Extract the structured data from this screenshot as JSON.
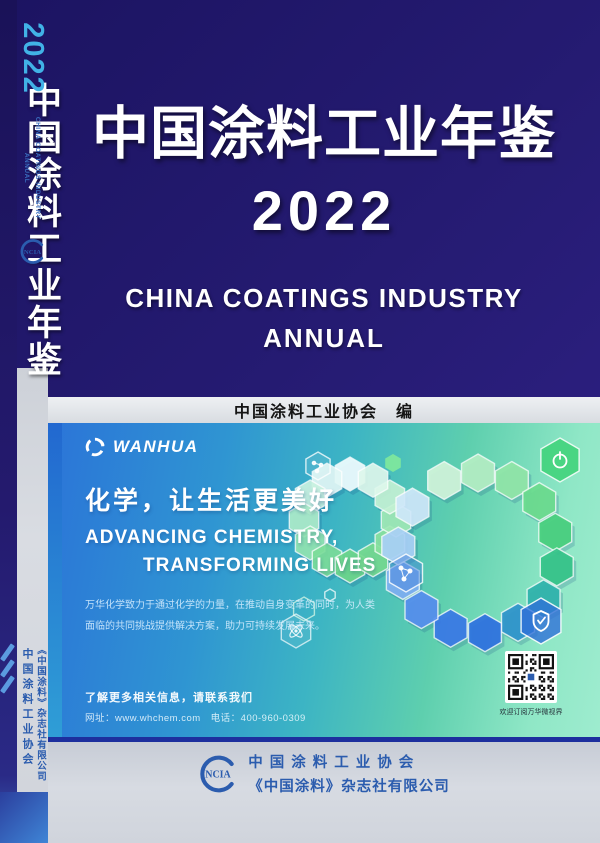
{
  "cover": {
    "title_zh": "中国涂料工业年鉴",
    "year": "2022",
    "title_en_line1": "CHINA COATINGS INDUSTRY",
    "title_en_line2": "ANNUAL",
    "editor": "中国涂料工业协会　编"
  },
  "spine": {
    "title_zh": "中国涂料工业年鉴",
    "year": "2022",
    "en_line1": "CHINA COATINGS INDUSTRY",
    "en_line2": "ANNUAL",
    "logo_text": "NCIA",
    "org": "中国涂料工业协会",
    "publisher": "《中国涂料》杂志社有限公司"
  },
  "ad": {
    "brand": "WANHUA",
    "slogan_zh": "化学，让生活更美好",
    "slogan_en_line1": "ADVANCING CHEMISTRY,",
    "slogan_en_line2": "TRANSFORMING LIVES",
    "body_line1": "万华化学致力于通过化学的力量，在推动自身变革的同时，为人类",
    "body_line2": "面临的共同挑战提供解决方案，助力可持续发展未来。",
    "contact_line1": "了解更多相关信息，请联系我们",
    "contact_line2": "网址：www.whchem.com　电话：400-960-0309",
    "qr_caption": "欢迎订阅万华微视界"
  },
  "footer": {
    "logo_text": "NCIA",
    "org": "中国涂料工业协会",
    "publisher": "《中国涂料》杂志社有限公司"
  },
  "colors": {
    "navy": "#231a70",
    "spine_year_cyan": "#41b2e6",
    "association_blue": "#2b5cae",
    "ad_blue": "#2b74d8",
    "ad_green": "#8fe7c6",
    "border_blue": "#1d2f9e"
  }
}
